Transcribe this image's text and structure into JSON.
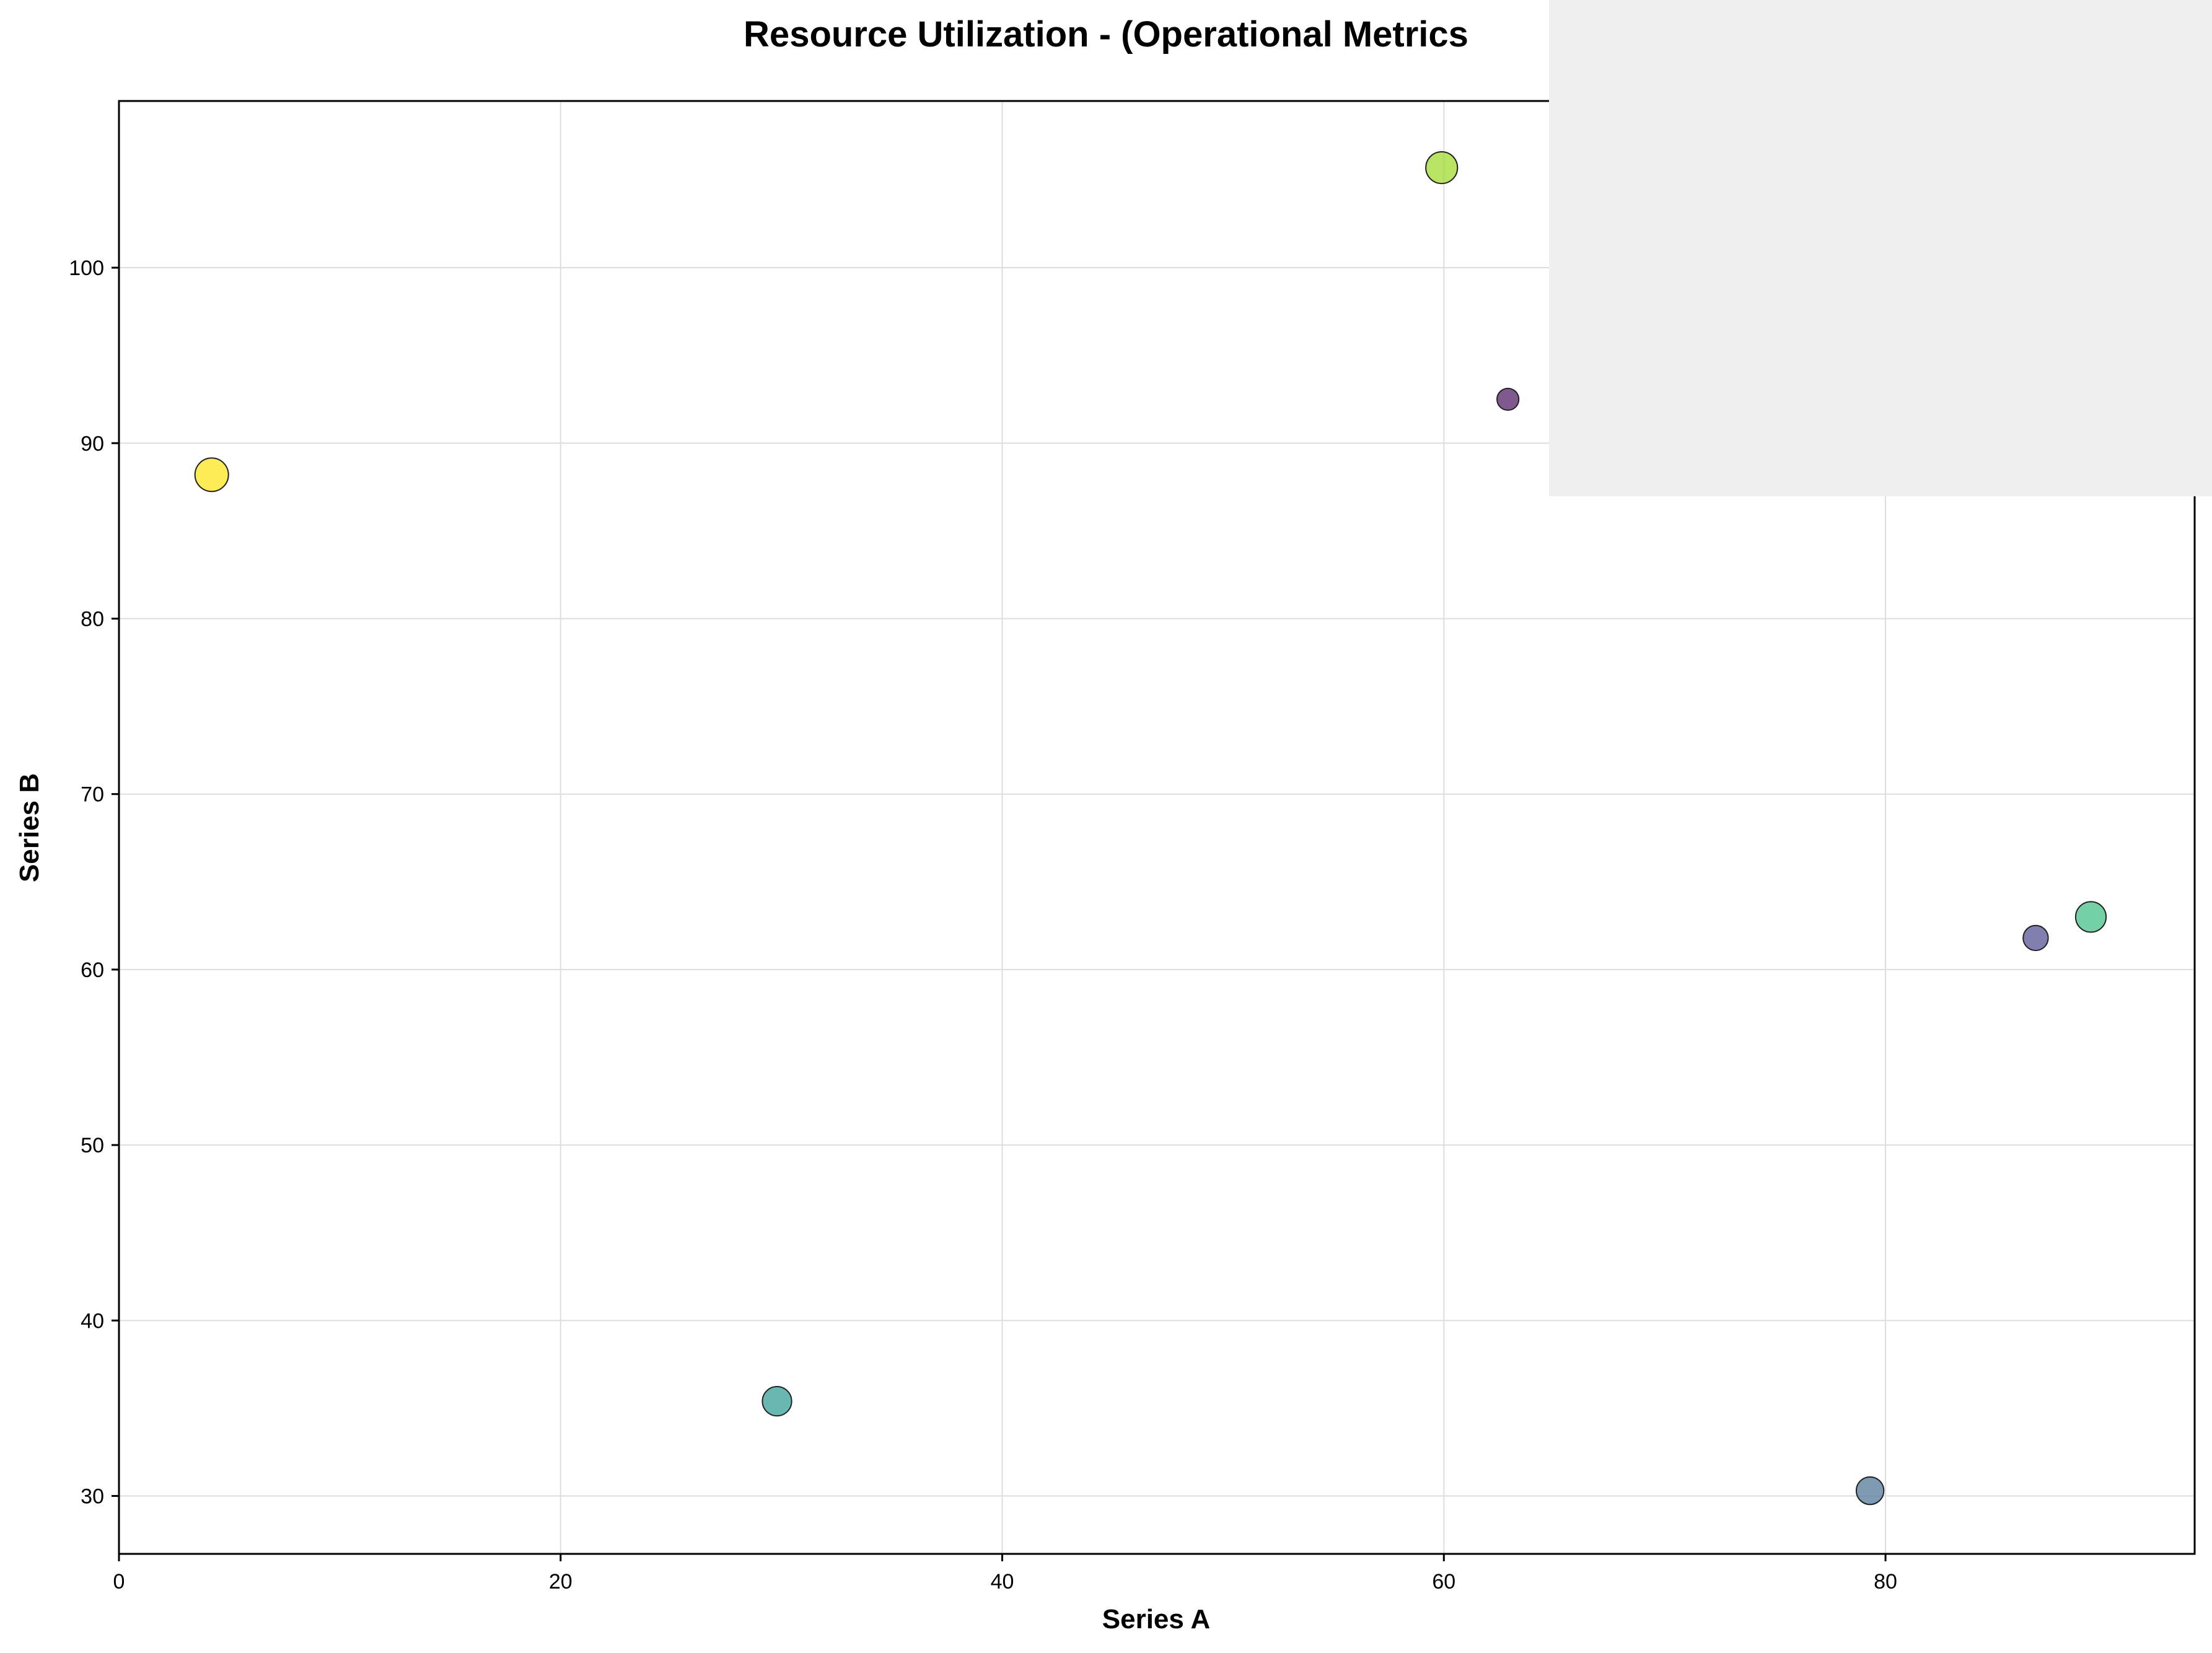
{
  "chart_data": {
    "type": "scatter",
    "title": "Resource Utilization - (Operational Metrics",
    "xlabel": "Series A",
    "ylabel": "Series B",
    "xlim": [
      0,
      94
    ],
    "ylim": [
      26.7,
      109.5
    ],
    "xticks": [
      0,
      20,
      40,
      60,
      80
    ],
    "yticks": [
      30,
      40,
      50,
      60,
      70,
      80,
      90,
      100
    ],
    "grid": true,
    "marker_edge_color": "#222222",
    "points": [
      {
        "x": 4.2,
        "y": 88.2,
        "size": 1.0,
        "color": "#fde725"
      },
      {
        "x": 59.9,
        "y": 105.7,
        "size": 0.92,
        "color": "#a5db36"
      },
      {
        "x": 62.9,
        "y": 92.5,
        "size": 0.45,
        "color": "#5c2a6e"
      },
      {
        "x": 29.8,
        "y": 35.4,
        "size": 0.8,
        "color": "#3fa39b"
      },
      {
        "x": 79.3,
        "y": 30.3,
        "size": 0.72,
        "color": "#5b7f9f"
      },
      {
        "x": 86.8,
        "y": 61.8,
        "size": 0.6,
        "color": "#5e5a9a"
      },
      {
        "x": 89.3,
        "y": 63.0,
        "size": 0.86,
        "color": "#4fc38c"
      }
    ]
  }
}
